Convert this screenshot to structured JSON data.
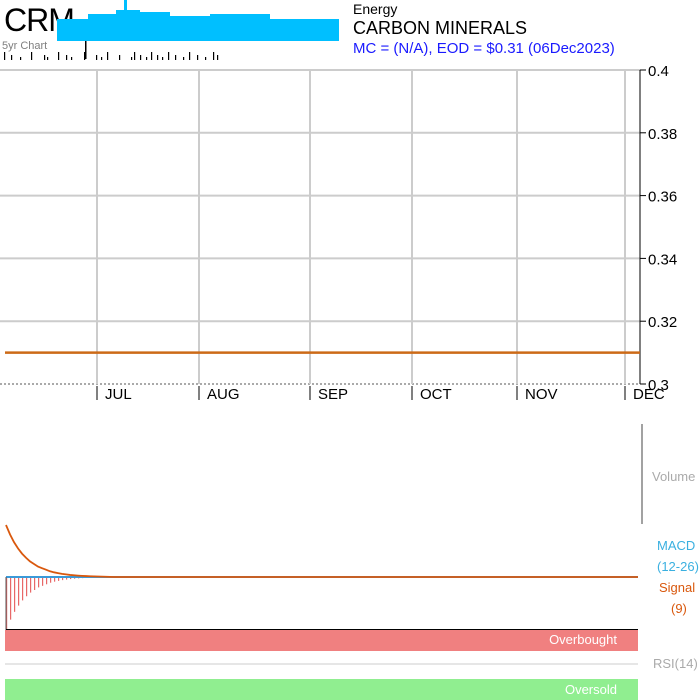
{
  "header": {
    "ticker": "CRM",
    "chart_label": "5yr Chart",
    "sector": "Energy",
    "company": "CARBON MINERALS",
    "quote": "MC = (N/A), EOD = $0.31 (06Dec2023)"
  },
  "colors": {
    "price_line": "#cc6a17",
    "sparkline": "#00bfff",
    "macd_line": "#3a9ad9",
    "signal_line": "#d9580d",
    "histogram": "#e86868",
    "overbought_band": "#f08080",
    "oversold_band": "#90ee90",
    "grid": "#cccccc"
  },
  "chart_data": [
    {
      "type": "line",
      "name": "price",
      "x_tick_labels": [
        "JUL",
        "AUG",
        "SEP",
        "OCT",
        "NOV",
        "DEC"
      ],
      "y_ticks": [
        0.3,
        0.32,
        0.34,
        0.36,
        0.38,
        0.4
      ],
      "y_tick_labels": [
        "0.3",
        "0.32",
        "0.34",
        "0.36",
        "0.38",
        "0.4"
      ],
      "ylim": [
        0.3,
        0.4
      ],
      "series": [
        {
          "values": [
            0.31,
            0.31
          ]
        }
      ],
      "grid": true
    },
    {
      "type": "bar",
      "name": "volume",
      "label": "Volume"
    },
    {
      "type": "line",
      "name": "macd",
      "macd_label": "MACD",
      "macd_params": "(12-26)",
      "signal_label": "Signal",
      "signal_params": "(9)",
      "macd_values": [
        0,
        0,
        0,
        0,
        0,
        0,
        0,
        0,
        0,
        0,
        0,
        0,
        0,
        0,
        0,
        0,
        0,
        0,
        0,
        0,
        0,
        0,
        0
      ],
      "signal_values": [
        1.0,
        0.82,
        0.67,
        0.55,
        0.45,
        0.37,
        0.3,
        0.25,
        0.2,
        0.17,
        0.14,
        0.11,
        0.09,
        0.075,
        0.06,
        0.05,
        0.04,
        0.033,
        0.027,
        0.022,
        0.018,
        0.015,
        0.012
      ],
      "histogram_values": [
        -1.0,
        -0.82,
        -0.67,
        -0.55,
        -0.45,
        -0.37,
        -0.3,
        -0.25,
        -0.2,
        -0.17,
        -0.14,
        -0.11,
        -0.09,
        -0.075,
        -0.06,
        -0.05,
        -0.04,
        -0.033,
        -0.027,
        -0.022,
        -0.018,
        -0.015,
        -0.012
      ]
    },
    {
      "type": "line",
      "name": "rsi",
      "label": "RSI(14)",
      "overbought_label": "Overbought",
      "oversold_label": "Oversold"
    }
  ]
}
